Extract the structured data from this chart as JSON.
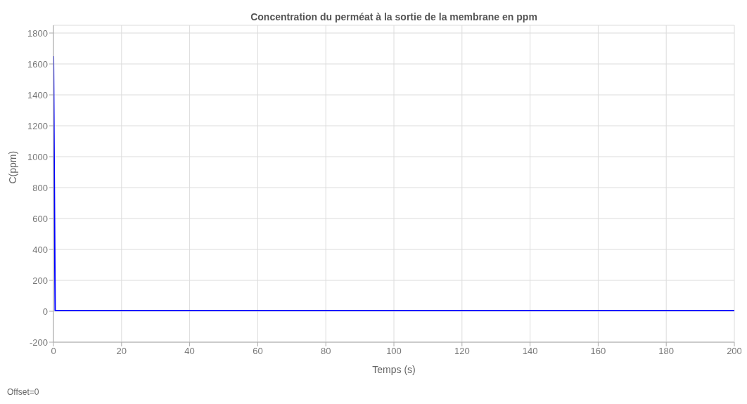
{
  "chart_data": {
    "type": "line",
    "title": "Concentration du perméat à la sortie de la membrane en ppm",
    "xlabel": "Temps (s)",
    "ylabel": "C(ppm)",
    "annotations": [
      "Offset=0"
    ],
    "series": [
      {
        "color": "#0000ff",
        "x": [
          0,
          0.5,
          200
        ],
        "values": [
          1650,
          5,
          5
        ]
      }
    ],
    "xlim": [
      0,
      200
    ],
    "xticks": [
      0,
      20,
      40,
      60,
      80,
      100,
      120,
      140,
      160,
      180,
      200
    ],
    "ylim": [
      -200,
      1850
    ],
    "yticks": [
      -200,
      0,
      200,
      400,
      600,
      800,
      1000,
      1200,
      1400,
      1600,
      1800
    ],
    "grid": true,
    "marker": "none",
    "line_style": "solid"
  }
}
